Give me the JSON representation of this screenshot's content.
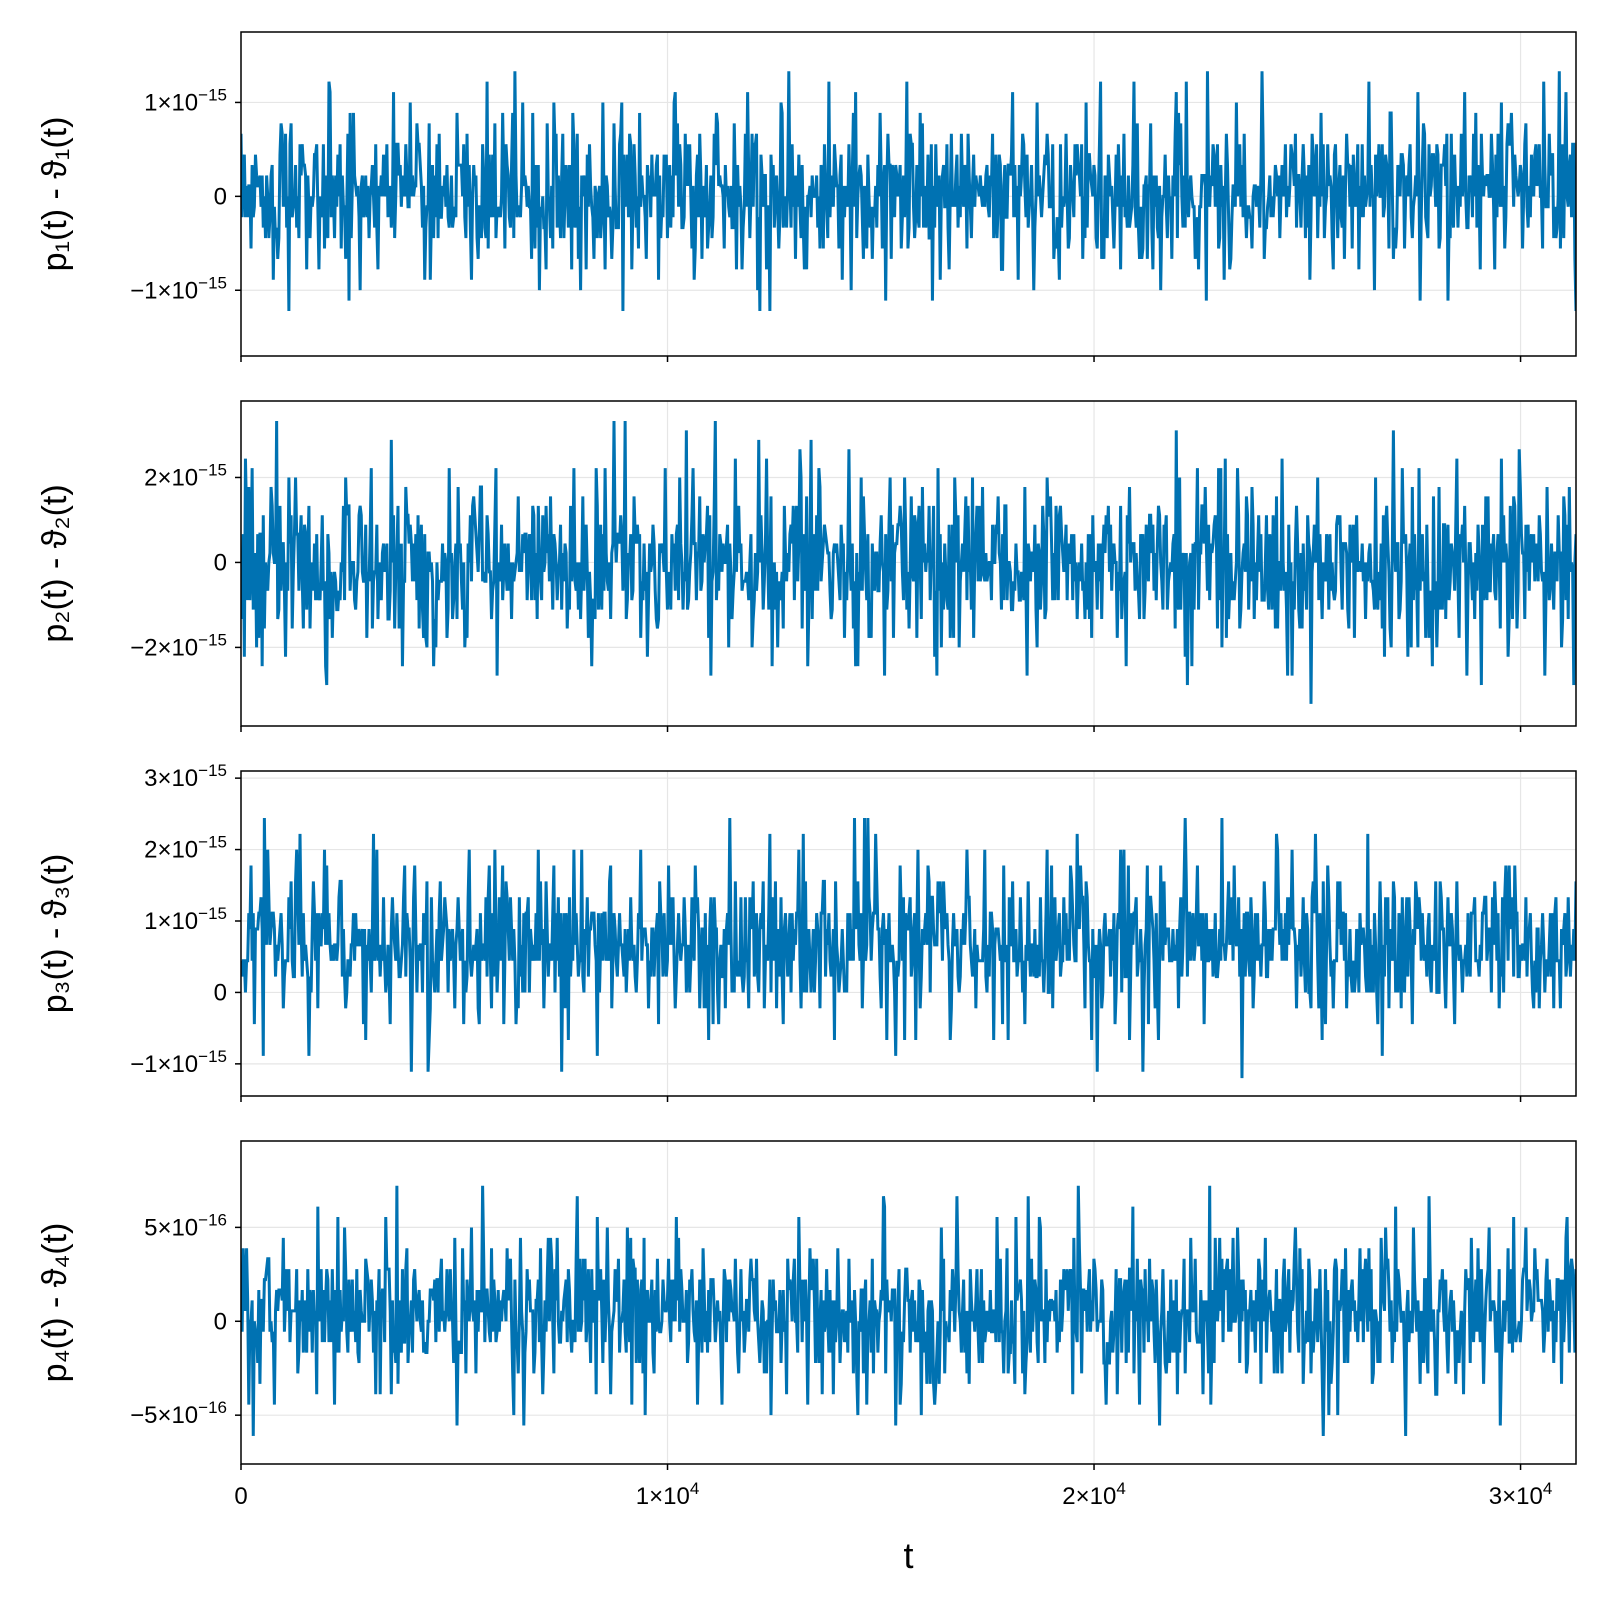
{
  "figure": {
    "accent_color": "#0072b2",
    "background": "#ffffff",
    "grid_color": "#e6e6e6"
  },
  "chart_data": [
    {
      "type": "line",
      "ylabel": "p₁(t) - ϑ₁(t)",
      "xlabel": "",
      "x_range": [
        0,
        31300
      ],
      "ylim": [
        -1.7e-15,
        1.75e-15
      ],
      "grid": true,
      "yticks": [
        {
          "value": 1e-15,
          "label": "1×10",
          "exp": "−15"
        },
        {
          "value": 0,
          "label": "0",
          "exp": ""
        },
        {
          "value": -1e-15,
          "label": "−1×10",
          "exp": "−15"
        }
      ],
      "noise": {
        "center": 6e-17,
        "spread": 7e-16,
        "quantum": 1.11e-16,
        "peak_max": 1.63e-15,
        "peak_min": -1.55e-15
      },
      "series": [
        {
          "color": "#0072b2"
        }
      ]
    },
    {
      "type": "line",
      "ylabel": "p₂(t) - ϑ₂(t)",
      "xlabel": "",
      "x_range": [
        0,
        31300
      ],
      "ylim": [
        -3.85e-15,
        3.8e-15
      ],
      "grid": true,
      "yticks": [
        {
          "value": 2e-15,
          "label": "2×10",
          "exp": "−15"
        },
        {
          "value": 0,
          "label": "0",
          "exp": ""
        },
        {
          "value": -2e-15,
          "label": "−2×10",
          "exp": "−15"
        }
      ],
      "noise": {
        "center": 0,
        "spread": 1.75e-15,
        "quantum": 2.22e-16,
        "peak_max": 3.4e-15,
        "peak_min": -3.5e-15
      },
      "series": [
        {
          "color": "#0072b2"
        }
      ]
    },
    {
      "type": "line",
      "ylabel": "p₃(t) - ϑ₃(t)",
      "xlabel": "",
      "x_range": [
        0,
        31300
      ],
      "ylim": [
        -1.45e-15,
        3.1e-15
      ],
      "grid": true,
      "yticks": [
        {
          "value": 3e-15,
          "label": "3×10",
          "exp": "−15"
        },
        {
          "value": 2e-15,
          "label": "2×10",
          "exp": "−15"
        },
        {
          "value": 1e-15,
          "label": "1×10",
          "exp": "−15"
        },
        {
          "value": 0,
          "label": "0",
          "exp": ""
        },
        {
          "value": -1e-15,
          "label": "−1×10",
          "exp": "−15"
        }
      ],
      "noise": {
        "center": 6.7e-16,
        "spread": 9.5e-16,
        "quantum": 2.22e-16,
        "peak_max": 2.85e-15,
        "peak_min": -1.2e-15
      },
      "series": [
        {
          "color": "#0072b2"
        }
      ]
    },
    {
      "type": "line",
      "ylabel": "p₄(t) - ϑ₄(t)",
      "xlabel": "t",
      "x_range": [
        0,
        31300
      ],
      "ylim": [
        -7.6e-16,
        9.6e-16
      ],
      "grid": true,
      "xticks": [
        {
          "value": 0,
          "label": "0",
          "exp": ""
        },
        {
          "value": 10000,
          "label": "1×10",
          "exp": "4"
        },
        {
          "value": 20000,
          "label": "2×10",
          "exp": "4"
        },
        {
          "value": 30000,
          "label": "3×10",
          "exp": "4"
        }
      ],
      "yticks": [
        {
          "value": 5e-16,
          "label": "5×10",
          "exp": "−16"
        },
        {
          "value": 0,
          "label": "0",
          "exp": ""
        },
        {
          "value": -5e-16,
          "label": "−5×10",
          "exp": "−16"
        }
      ],
      "noise": {
        "center": 5e-17,
        "spread": 3.6e-16,
        "quantum": 5.55e-17,
        "peak_max": 8.8e-16,
        "peak_min": -6.7e-16
      },
      "series": [
        {
          "color": "#0072b2"
        }
      ]
    }
  ]
}
